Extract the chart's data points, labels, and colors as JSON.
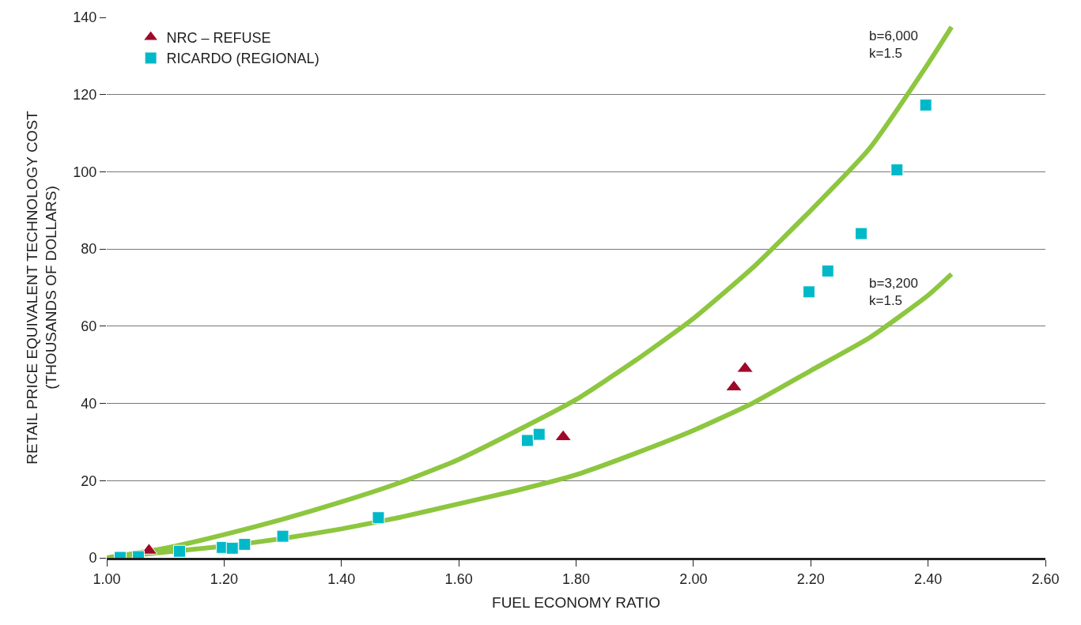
{
  "chart_data": {
    "type": "scatter",
    "xlabel": "FUEL ECONOMY RATIO",
    "ylabel": "RETAIL PRICE EQUIVALENT TECHNOLOGY COST\n(THOUSANDS OF DOLLARS)",
    "xlim": [
      1.0,
      2.6
    ],
    "xticks": [
      {
        "value": 1.0,
        "label": "1.00"
      },
      {
        "value": 1.2,
        "label": "1.20"
      },
      {
        "value": 1.4,
        "label": "1.40"
      },
      {
        "value": 1.6,
        "label": "1.60"
      },
      {
        "value": 1.8,
        "label": "1.80"
      },
      {
        "value": 2.0,
        "label": "2.00"
      },
      {
        "value": 2.2,
        "label": "2.20"
      },
      {
        "value": 2.4,
        "label": "2.40"
      },
      {
        "value": 2.6,
        "label": "2.60"
      }
    ],
    "ylim": [
      0,
      140
    ],
    "yticks": [
      0,
      20,
      40,
      60,
      80,
      100,
      120,
      140
    ],
    "grid": "y",
    "legend": "top left",
    "series": [
      {
        "type": "line",
        "color": "#8dc63f",
        "marker": "none",
        "line_style": "solid",
        "x": [
          1.0,
          1.1,
          1.2,
          1.3,
          1.4,
          1.5,
          1.6,
          1.7,
          1.8,
          1.9,
          2.0,
          2.1,
          2.2,
          2.3,
          2.4,
          2.44
        ],
        "values": [
          0,
          2.5,
          6,
          10,
          14.5,
          19.5,
          25.5,
          33,
          41,
          51,
          62,
          75,
          90,
          106,
          128,
          137.5
        ]
      },
      {
        "type": "line",
        "color": "#8dc63f",
        "marker": "none",
        "line_style": "solid",
        "x": [
          1.0,
          1.1,
          1.2,
          1.3,
          1.4,
          1.5,
          1.6,
          1.7,
          1.8,
          1.9,
          2.0,
          2.1,
          2.2,
          2.3,
          2.4,
          2.44
        ],
        "values": [
          0,
          1.5,
          3,
          5,
          7.5,
          10.5,
          14,
          17.5,
          21.5,
          27,
          33,
          40,
          48.5,
          57,
          68,
          73.5
        ]
      },
      {
        "name": "NRC – REFUSE",
        "color": "#a0082a",
        "marker": "triangle",
        "x": [
          1.072,
          1.778,
          2.069,
          2.088
        ],
        "values": [
          1.9,
          31.3,
          44.2,
          49.0
        ]
      },
      {
        "name": "RICARDO (REGIONAL)",
        "color": "#00b9c8",
        "marker": "square",
        "x": [
          1.023,
          1.054,
          1.124,
          1.197,
          1.214,
          1.235,
          1.3,
          1.463,
          1.717,
          1.737,
          2.197,
          2.229,
          2.286,
          2.347,
          2.396
        ],
        "values": [
          0.1,
          0.3,
          1.7,
          2.7,
          2.5,
          3.5,
          5.6,
          10.4,
          30.4,
          32.0,
          68.9,
          74.3,
          84.0,
          100.5,
          117.3
        ]
      }
    ],
    "annotations": [
      {
        "text": "b=6,000\nk=1.5",
        "x": 2.44,
        "y": 137.5
      },
      {
        "text": "b=3,200\nk=1.5",
        "x": 2.44,
        "y": 73.5
      }
    ]
  }
}
